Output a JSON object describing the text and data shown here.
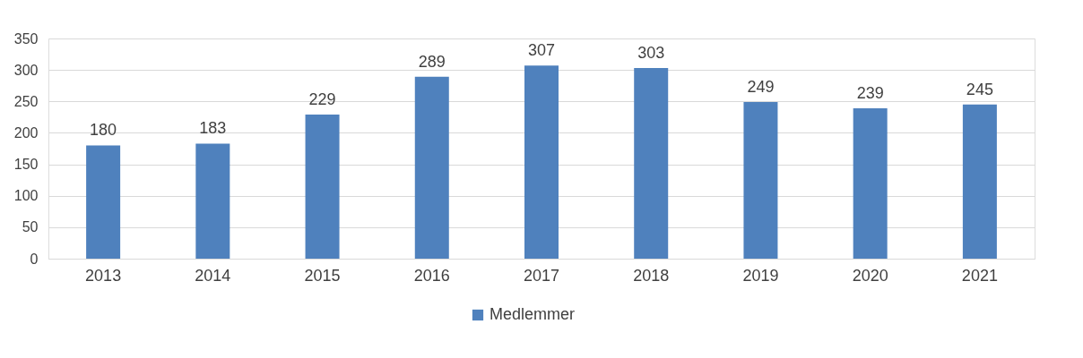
{
  "chart_data": {
    "type": "bar",
    "categories": [
      "2013",
      "2014",
      "2015",
      "2016",
      "2017",
      "2018",
      "2019",
      "2020",
      "2021"
    ],
    "series": [
      {
        "name": "Medlemmer",
        "color": "#4f81bd",
        "values": [
          180,
          183,
          229,
          289,
          307,
          303,
          249,
          239,
          245
        ]
      }
    ],
    "ylim": [
      0,
      350
    ],
    "yticks": [
      0,
      50,
      100,
      150,
      200,
      250,
      300,
      350
    ],
    "grid": "y",
    "legend": "bottom",
    "data_labels": true
  }
}
